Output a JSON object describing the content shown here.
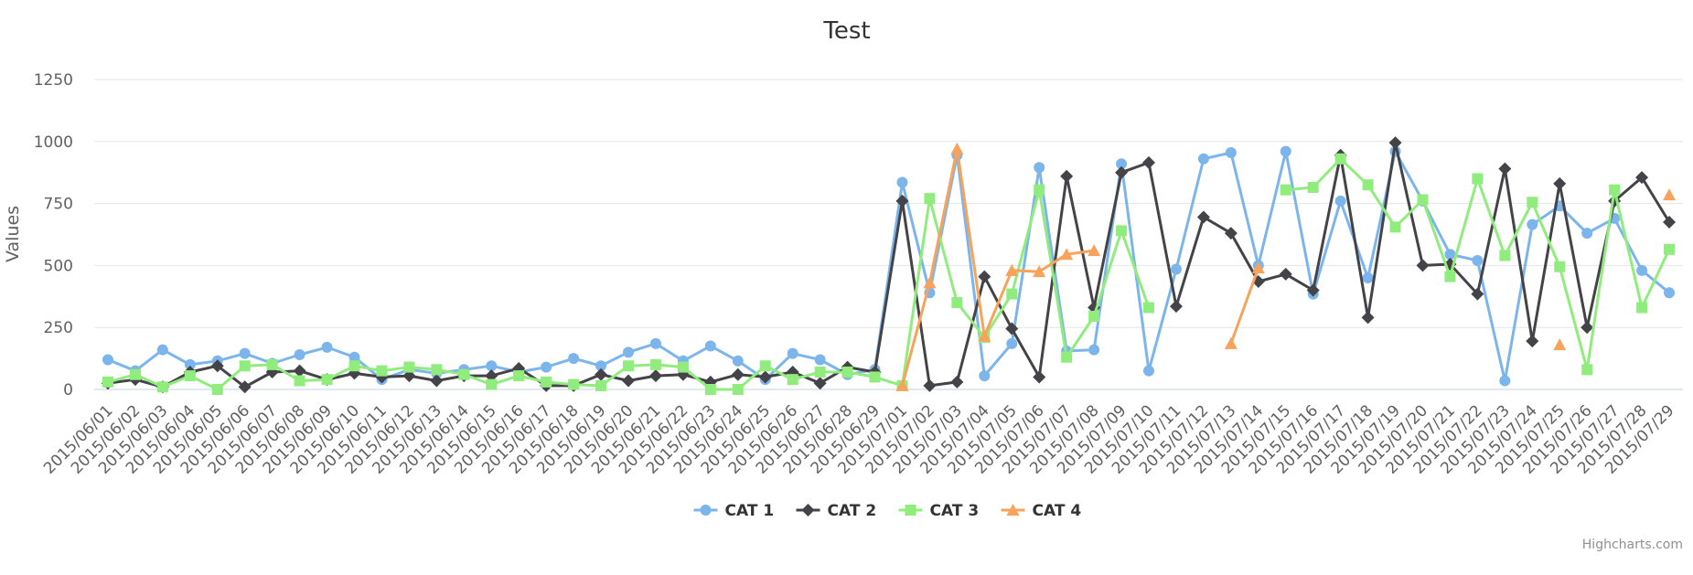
{
  "chart_data": {
    "type": "line",
    "title": "Test",
    "xlabel": "",
    "ylabel": "Values",
    "ylim": [
      0,
      1250
    ],
    "y_ticks": [
      0,
      250,
      500,
      750,
      1000,
      1250
    ],
    "grid": true,
    "legend_position": "bottom-center",
    "credits": "Highcharts.com",
    "categories": [
      "2015/06/01",
      "2015/06/02",
      "2015/06/03",
      "2015/06/04",
      "2015/06/05",
      "2015/06/06",
      "2015/06/07",
      "2015/06/08",
      "2015/06/09",
      "2015/06/10",
      "2015/06/11",
      "2015/06/12",
      "2015/06/13",
      "2015/06/14",
      "2015/06/15",
      "2015/06/16",
      "2015/06/17",
      "2015/06/18",
      "2015/06/19",
      "2015/06/20",
      "2015/06/21",
      "2015/06/22",
      "2015/06/23",
      "2015/06/24",
      "2015/06/25",
      "2015/06/26",
      "2015/06/27",
      "2015/06/28",
      "2015/06/29",
      "2015/07/01",
      "2015/07/02",
      "2015/07/03",
      "2015/07/04",
      "2015/07/05",
      "2015/07/06",
      "2015/07/07",
      "2015/07/08",
      "2015/07/09",
      "2015/07/10",
      "2015/07/11",
      "2015/07/12",
      "2015/07/13",
      "2015/07/14",
      "2015/07/15",
      "2015/07/16",
      "2015/07/17",
      "2015/07/18",
      "2015/07/19",
      "2015/07/20",
      "2015/07/21",
      "2015/07/22",
      "2015/07/23",
      "2015/07/24",
      "2015/07/25",
      "2015/07/26",
      "2015/07/27",
      "2015/07/28",
      "2015/07/29"
    ],
    "series": [
      {
        "name": "CAT 1",
        "color": "#7cb5ec",
        "marker": "circle",
        "values": [
          120,
          75,
          160,
          100,
          115,
          145,
          105,
          140,
          170,
          130,
          40,
          80,
          65,
          80,
          95,
          70,
          90,
          125,
          95,
          150,
          185,
          115,
          175,
          115,
          40,
          145,
          120,
          60,
          80,
          835,
          390,
          945,
          55,
          185,
          895,
          155,
          160,
          910,
          75,
          485,
          930,
          955,
          500,
          960,
          385,
          760,
          450,
          960,
          760,
          545,
          520,
          35,
          665,
          740,
          630,
          690,
          480,
          390
        ]
      },
      {
        "name": "CAT 2",
        "color": "#434348",
        "marker": "diamond",
        "values": [
          25,
          40,
          10,
          70,
          95,
          10,
          70,
          75,
          40,
          65,
          50,
          55,
          35,
          55,
          55,
          85,
          15,
          15,
          60,
          35,
          55,
          60,
          30,
          60,
          50,
          70,
          25,
          90,
          70,
          760,
          15,
          30,
          455,
          245,
          50,
          860,
          330,
          875,
          915,
          335,
          695,
          630,
          435,
          465,
          400,
          945,
          290,
          995,
          500,
          505,
          385,
          890,
          195,
          830,
          250,
          760,
          855,
          675
        ]
      },
      {
        "name": "CAT 3",
        "color": "#90ed7d",
        "marker": "square",
        "values": [
          30,
          60,
          10,
          55,
          0,
          95,
          100,
          35,
          40,
          95,
          75,
          90,
          80,
          60,
          20,
          55,
          30,
          20,
          15,
          95,
          100,
          90,
          0,
          0,
          95,
          40,
          70,
          70,
          50,
          15,
          770,
          350,
          210,
          385,
          805,
          130,
          295,
          640,
          330,
          null,
          null,
          null,
          null,
          805,
          815,
          930,
          825,
          655,
          765,
          455,
          850,
          540,
          755,
          495,
          80,
          805,
          330,
          565
        ]
      },
      {
        "name": "CAT 4",
        "color": "#f7a35c",
        "marker": "triangle",
        "values": [
          null,
          null,
          null,
          null,
          null,
          null,
          null,
          null,
          null,
          null,
          null,
          null,
          null,
          null,
          null,
          null,
          null,
          null,
          null,
          null,
          null,
          null,
          null,
          null,
          null,
          null,
          null,
          null,
          null,
          15,
          430,
          970,
          215,
          480,
          475,
          545,
          560,
          null,
          null,
          null,
          null,
          185,
          490,
          null,
          null,
          null,
          null,
          null,
          null,
          null,
          null,
          null,
          null,
          180,
          null,
          null,
          null,
          785
        ]
      }
    ]
  }
}
